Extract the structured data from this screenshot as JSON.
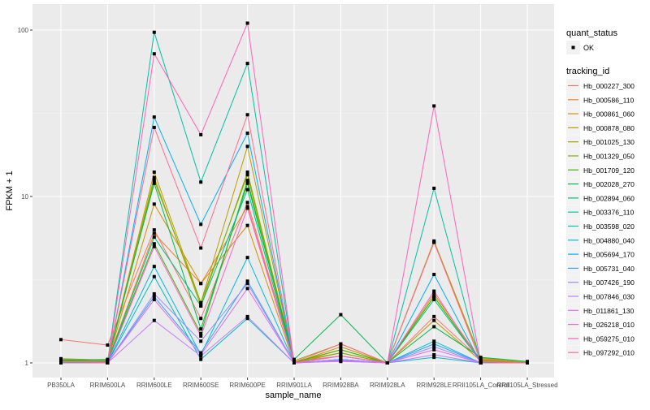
{
  "chart_data": {
    "type": "line",
    "title": "",
    "xlabel": "sample_name",
    "ylabel": "FPKM + 1",
    "yscale": "log10",
    "ylim": [
      0.95,
      125
    ],
    "yticks": [
      1,
      10,
      100
    ],
    "ytick_labels": [
      "1",
      "10",
      "100"
    ],
    "grid": true,
    "legend_position": "right",
    "categories": [
      "PB350LA",
      "RRIM600LA",
      "RRIM600LE",
      "RRIM600SE",
      "RRIM600PE",
      "RRIM901LA",
      "RRIM928BA",
      "RRIM928LA",
      "RRIM928LE",
      "RRII105LA_Control",
      "RRII105LA_Stressed"
    ],
    "legend_shape": {
      "title": "quant_status",
      "items": [
        "OK"
      ]
    },
    "legend_color_title": "tracking_id",
    "series": [
      {
        "name": "Hb_000227_300",
        "color": "#F8766D",
        "values": [
          1.38,
          1.28,
          6.3,
          1.85,
          9.2,
          1.02,
          1.1,
          1.0,
          1.9,
          1.05,
          1.0
        ]
      },
      {
        "name": "Hb_000586_110",
        "color": "#EA8331",
        "values": [
          1.05,
          1.03,
          6.0,
          3.0,
          8.7,
          1.02,
          1.15,
          1.0,
          5.3,
          1.06,
          1.0
        ]
      },
      {
        "name": "Hb_000861_060",
        "color": "#D89000",
        "values": [
          1.04,
          1.02,
          9.0,
          3.0,
          6.7,
          1.0,
          1.2,
          1.0,
          2.6,
          1.04,
          1.0
        ]
      },
      {
        "name": "Hb_000878_080",
        "color": "#C09B00",
        "values": [
          1.03,
          1.02,
          14,
          2.3,
          20,
          1.0,
          1.25,
          1.0,
          1.8,
          1.03,
          1.0
        ]
      },
      {
        "name": "Hb_001025_130",
        "color": "#A3A500",
        "values": [
          1.06,
          1.04,
          13,
          2.2,
          14,
          1.03,
          1.3,
          1.0,
          5.4,
          1.07,
          1.01
        ]
      },
      {
        "name": "Hb_001329_050",
        "color": "#7CAE00",
        "values": [
          1.02,
          1.01,
          12.5,
          2.3,
          13.5,
          1.0,
          1.15,
          1.0,
          2.5,
          1.02,
          1.0
        ]
      },
      {
        "name": "Hb_001709_120",
        "color": "#39B600",
        "values": [
          1.03,
          1.02,
          5.2,
          1.5,
          12.5,
          1.01,
          1.2,
          1.0,
          2.5,
          1.03,
          1.0
        ]
      },
      {
        "name": "Hb_002028_270",
        "color": "#00BB4E",
        "values": [
          1.04,
          1.05,
          12,
          1.6,
          12,
          1.05,
          1.95,
          1.0,
          1.65,
          1.08,
          1.02
        ]
      },
      {
        "name": "Hb_002894_060",
        "color": "#00BF7D",
        "values": [
          1.02,
          1.02,
          5.7,
          2.2,
          11,
          1.0,
          1.1,
          1.0,
          2.4,
          1.02,
          1.0
        ]
      },
      {
        "name": "Hb_003376_110",
        "color": "#00C1A3",
        "values": [
          1.01,
          1.01,
          97,
          12.2,
          63,
          1.0,
          1.05,
          1.0,
          11.2,
          1.01,
          1.0
        ]
      },
      {
        "name": "Hb_003598_020",
        "color": "#00BFC4",
        "values": [
          1.0,
          1.0,
          3.3,
          1.05,
          1.85,
          1.0,
          1.03,
          1.0,
          1.08,
          1.0,
          1.0
        ]
      },
      {
        "name": "Hb_004880_040",
        "color": "#00BAE0",
        "values": [
          1.0,
          1.0,
          3.8,
          1.12,
          4.3,
          1.0,
          1.05,
          1.0,
          1.35,
          1.0,
          1.0
        ]
      },
      {
        "name": "Hb_005694_170",
        "color": "#00B0F6",
        "values": [
          1.0,
          1.0,
          30,
          6.8,
          24,
          1.0,
          1.05,
          1.0,
          3.4,
          1.0,
          1.0
        ]
      },
      {
        "name": "Hb_005731_040",
        "color": "#35A2FF",
        "values": [
          1.0,
          1.0,
          2.5,
          1.15,
          3.1,
          1.0,
          1.04,
          1.0,
          1.3,
          1.0,
          1.0
        ]
      },
      {
        "name": "Hb_007426_190",
        "color": "#9590FF",
        "values": [
          1.0,
          1.0,
          2.6,
          1.35,
          3.0,
          1.0,
          1.05,
          1.0,
          1.25,
          1.0,
          1.0
        ]
      },
      {
        "name": "Hb_007846_030",
        "color": "#C77CFF",
        "values": [
          1.0,
          1.0,
          1.8,
          1.1,
          1.9,
          1.0,
          1.02,
          1.0,
          1.12,
          1.0,
          1.0
        ]
      },
      {
        "name": "Hb_011861_130",
        "color": "#E76BF3",
        "values": [
          1.0,
          1.0,
          2.4,
          1.12,
          2.8,
          1.0,
          1.03,
          1.0,
          1.2,
          1.0,
          1.0
        ]
      },
      {
        "name": "Hb_026218_010",
        "color": "#FA62DB",
        "values": [
          1.0,
          1.0,
          5.0,
          1.45,
          8.5,
          1.0,
          1.1,
          1.0,
          2.7,
          1.0,
          1.0
        ]
      },
      {
        "name": "Hb_059275_010",
        "color": "#FF62BC",
        "values": [
          1.0,
          1.0,
          72,
          23.5,
          110,
          1.0,
          1.1,
          1.0,
          35,
          1.0,
          1.0
        ]
      },
      {
        "name": "Hb_097292_010",
        "color": "#FF6C91",
        "values": [
          1.02,
          1.01,
          26,
          4.9,
          31,
          1.01,
          1.3,
          1.0,
          5.3,
          1.02,
          1.0
        ]
      }
    ]
  }
}
